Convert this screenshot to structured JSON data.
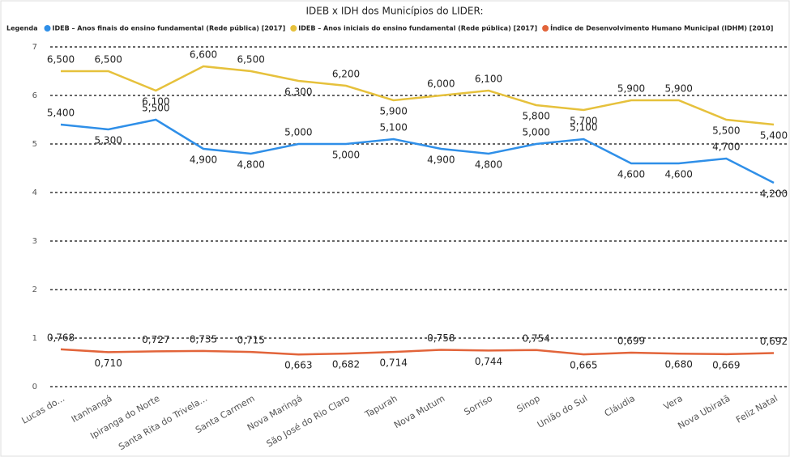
{
  "chart_data": {
    "type": "line",
    "title": "IDEB x IDH dos Municípios do LIDER:",
    "legend_title": "Legenda",
    "legend_position": "top-left",
    "categories": [
      "Lucas do...",
      "Itanhangá",
      "Ipiranga do Norte",
      "Santa Rita do Trivela...",
      "Santa Carmem",
      "Nova Maringá",
      "São José do Rio Claro",
      "Tapurah",
      "Nova Mutum",
      "Sorriso",
      "Sinop",
      "União do Sul",
      "Cláudia",
      "Vera",
      "Nova Ubiratã",
      "Feliz Natal"
    ],
    "series": [
      {
        "name": "IDEB – Anos finais do ensino fundamental (Rede pública) [2017]",
        "color": "#2f8fe8",
        "values": [
          5.4,
          5.3,
          5.5,
          4.9,
          4.8,
          5.0,
          5.0,
          5.1,
          4.9,
          4.8,
          5.0,
          5.1,
          4.6,
          4.6,
          4.7,
          4.2
        ],
        "value_labels": [
          "5,400",
          "5,300",
          "5,500",
          "4,900",
          "4,800",
          "5,000",
          "5,000",
          "5,100",
          "4,900",
          "4,800",
          "5,000",
          "5,100",
          "4,600",
          "4,600",
          "4,700",
          "4,200"
        ]
      },
      {
        "name": "IDEB – Anos iniciais do ensino fundamental (Rede pública) [2017]",
        "color": "#e6c13c",
        "values": [
          6.5,
          6.5,
          6.1,
          6.6,
          6.5,
          6.3,
          6.2,
          5.9,
          6.0,
          6.1,
          5.8,
          5.7,
          5.9,
          5.9,
          5.5,
          5.4
        ],
        "value_labels": [
          "6,500",
          "6,500",
          "6,100",
          "6,600",
          "6,500",
          "6,300",
          "6,200",
          "5,900",
          "6,000",
          "6,100",
          "5,800",
          "5,700",
          "5,900",
          "5,900",
          "5,500",
          "5,400"
        ]
      },
      {
        "name": "Índice de Desenvolvimento Humano Municipal (IDHM) [2010]",
        "color": "#e2643a",
        "values": [
          0.768,
          0.71,
          0.727,
          0.735,
          0.715,
          0.663,
          0.682,
          0.714,
          0.758,
          0.744,
          0.754,
          0.665,
          0.699,
          0.68,
          0.669,
          0.692
        ],
        "value_labels": [
          "0,768",
          "0,710",
          "0,727",
          "0,735",
          "0,715",
          "0,663",
          "0,682",
          "0,714",
          "0,758",
          "0,744",
          "0,754",
          "0,665",
          "0,699",
          "0,680",
          "0,669",
          "0,692"
        ]
      }
    ],
    "ylim": [
      0,
      7
    ],
    "yticks": [
      0,
      1,
      2,
      3,
      4,
      5,
      6,
      7
    ],
    "grid": true
  }
}
